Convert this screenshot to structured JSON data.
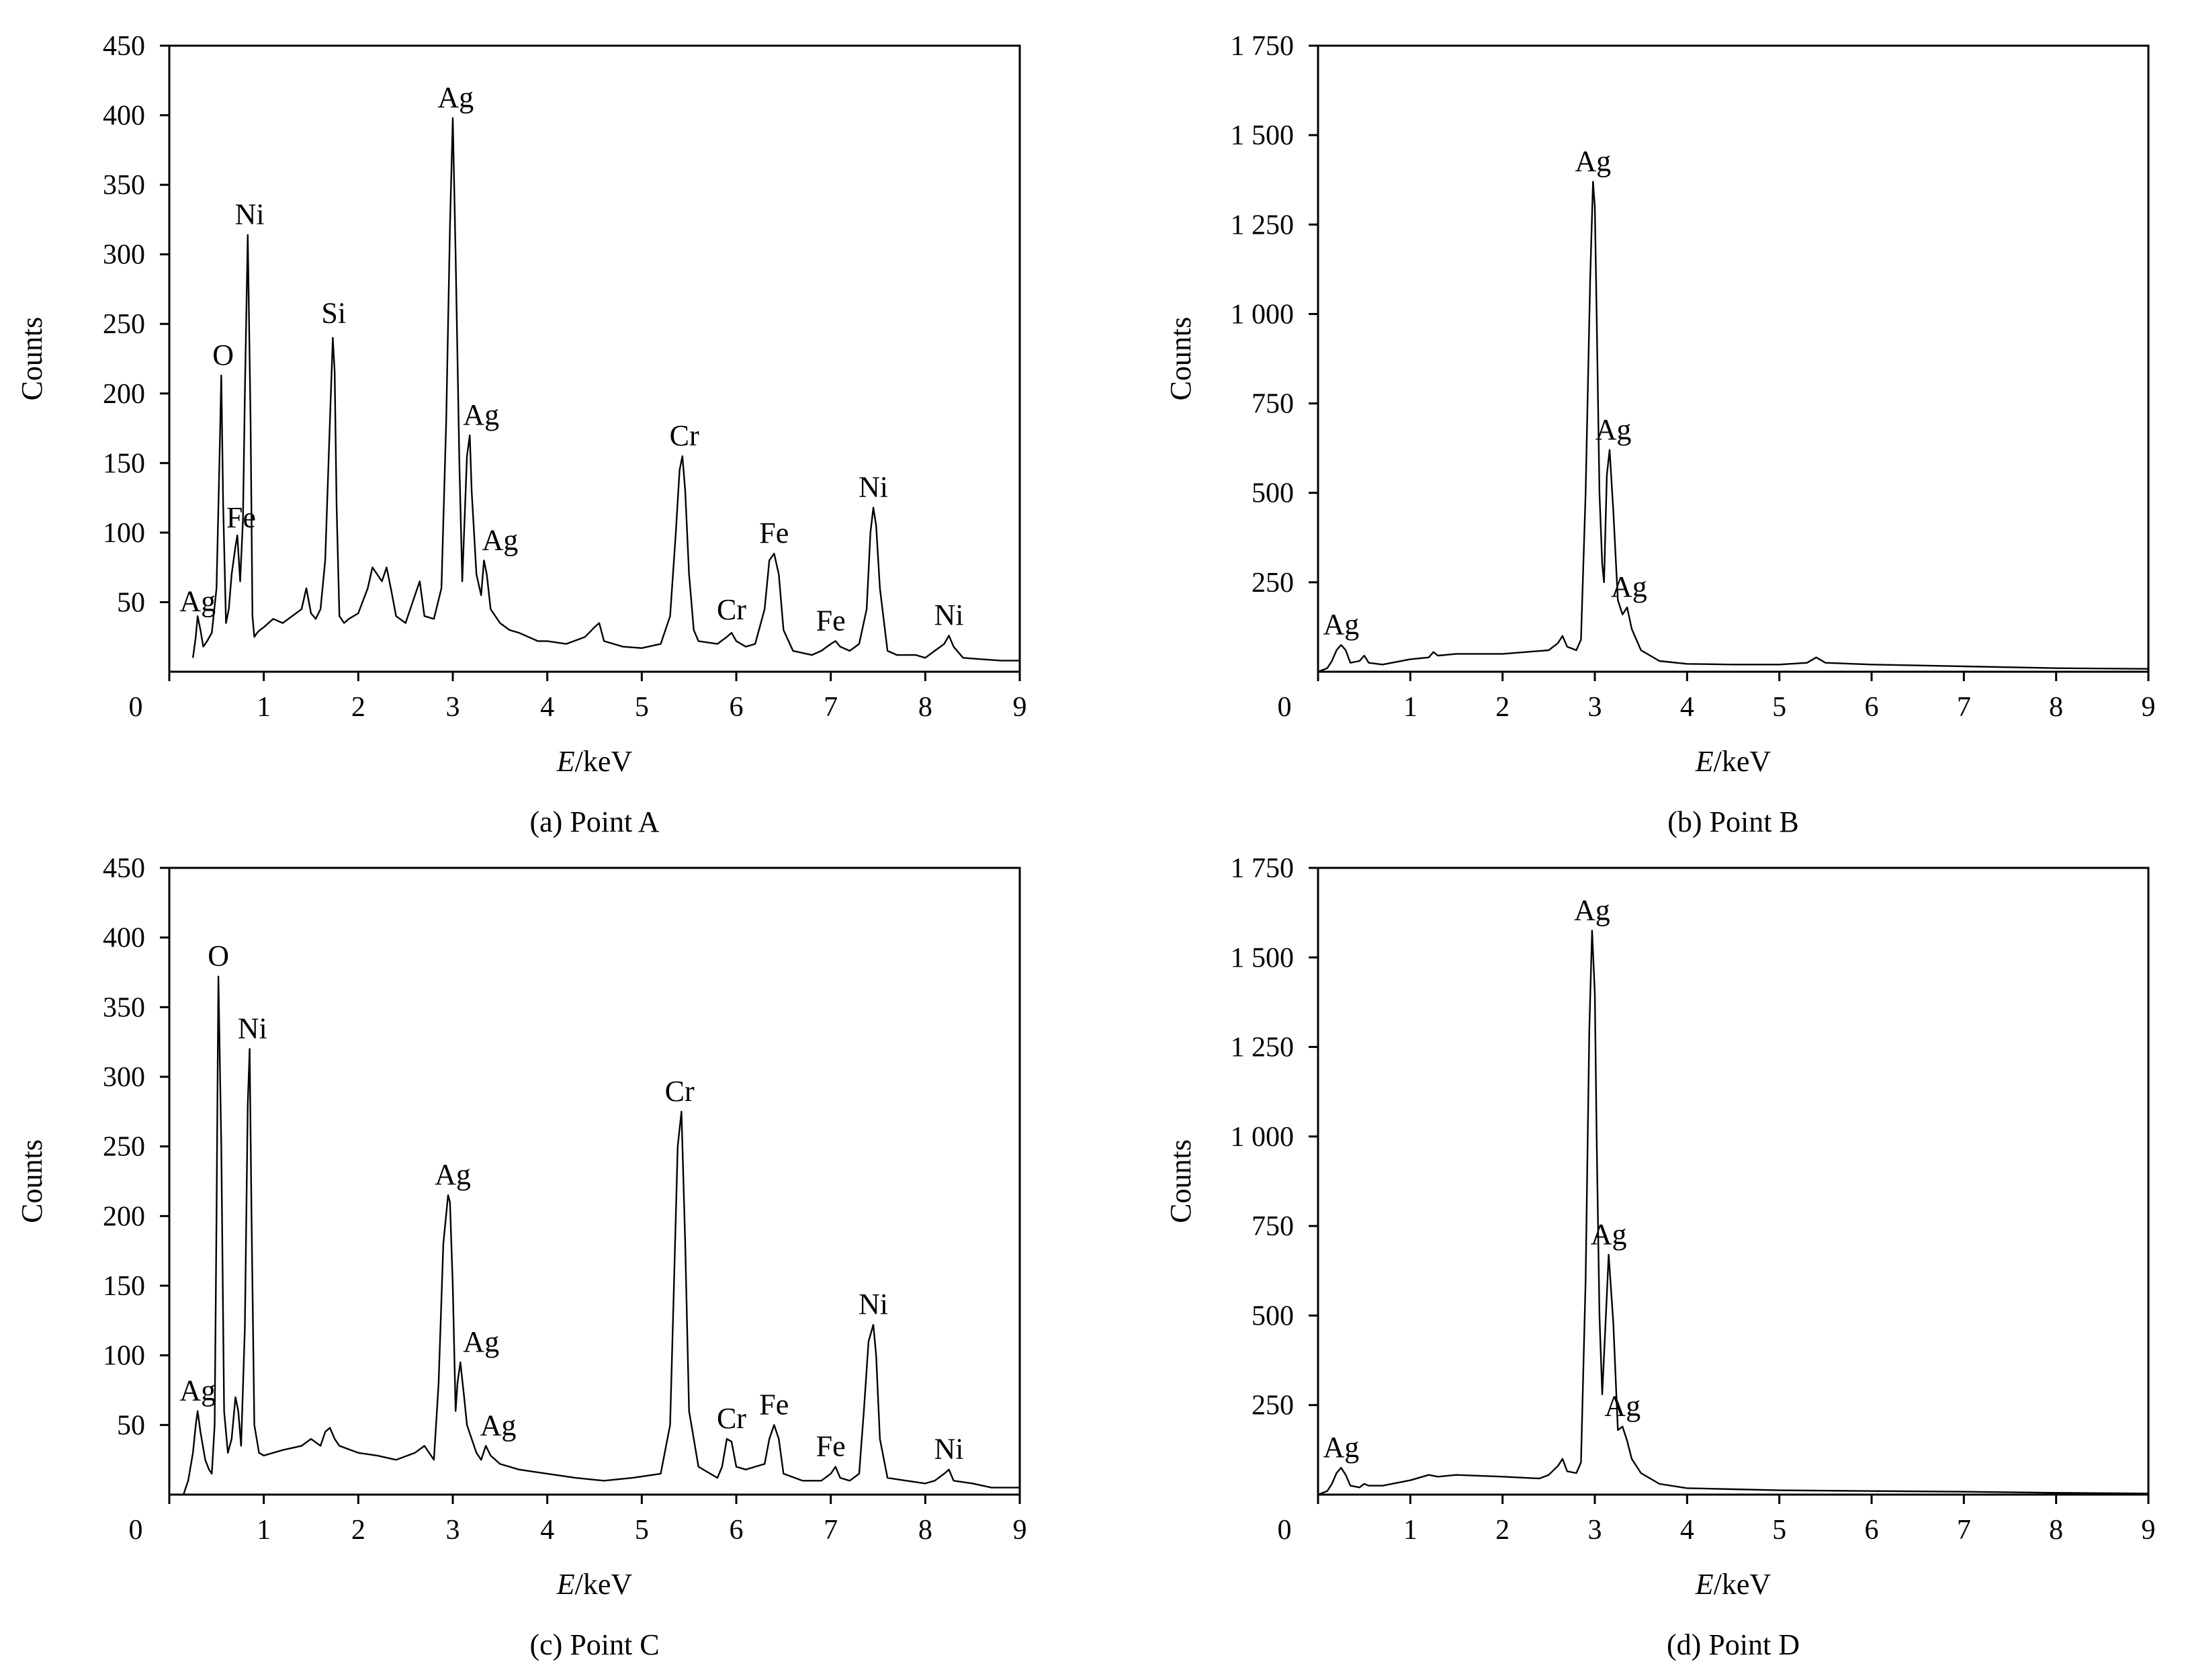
{
  "chart_data": [
    {
      "panel": "a",
      "type": "line",
      "caption": "(a) Point A",
      "xlabel_italic": "E",
      "xlabel_rest": "/keV",
      "ylabel": "Counts",
      "xlim": [
        0,
        9
      ],
      "ylim": [
        0,
        450
      ],
      "x_ticks": [
        0,
        1,
        2,
        3,
        4,
        5,
        6,
        7,
        8,
        9
      ],
      "x_tick_labels": [
        "0",
        "1",
        "2",
        "3",
        "4",
        "5",
        "6",
        "7",
        "8",
        "9"
      ],
      "y_ticks": [
        50,
        100,
        150,
        200,
        250,
        300,
        350,
        400,
        450
      ],
      "y_tick_labels": [
        "50",
        "100",
        "150",
        "200",
        "250",
        "300",
        "350",
        "400",
        "450"
      ],
      "origin_label": "0",
      "series": [
        {
          "x": [
            0.25,
            0.28,
            0.3,
            0.33,
            0.36,
            0.4,
            0.45,
            0.5,
            0.53,
            0.55,
            0.57,
            0.6,
            0.63,
            0.66,
            0.7,
            0.72,
            0.75,
            0.78,
            0.8,
            0.83,
            0.86,
            0.88,
            0.9,
            0.93,
            0.96,
            1.0,
            1.1,
            1.2,
            1.3,
            1.4,
            1.45,
            1.5,
            1.55,
            1.6,
            1.65,
            1.7,
            1.73,
            1.75,
            1.77,
            1.8,
            1.85,
            1.9,
            2.0,
            2.1,
            2.15,
            2.2,
            2.25,
            2.3,
            2.35,
            2.4,
            2.5,
            2.6,
            2.65,
            2.7,
            2.8,
            2.88,
            2.93,
            2.97,
            3.0,
            3.03,
            3.07,
            3.1,
            3.15,
            3.18,
            3.2,
            3.25,
            3.3,
            3.33,
            3.36,
            3.4,
            3.5,
            3.6,
            3.7,
            3.8,
            3.9,
            4.0,
            4.2,
            4.4,
            4.5,
            4.55,
            4.6,
            4.8,
            5.0,
            5.2,
            5.3,
            5.36,
            5.4,
            5.43,
            5.46,
            5.5,
            5.55,
            5.6,
            5.8,
            5.9,
            5.95,
            6.0,
            6.1,
            6.2,
            6.3,
            6.35,
            6.4,
            6.45,
            6.5,
            6.6,
            6.8,
            6.9,
            7.0,
            7.05,
            7.1,
            7.2,
            7.3,
            7.38,
            7.42,
            7.45,
            7.48,
            7.52,
            7.6,
            7.7,
            7.8,
            7.9,
            8.0,
            8.1,
            8.2,
            8.25,
            8.3,
            8.4,
            8.6,
            8.8,
            9.0
          ],
          "y": [
            10,
            25,
            40,
            30,
            18,
            22,
            28,
            60,
            150,
            213,
            120,
            35,
            45,
            70,
            90,
            98,
            65,
            110,
            200,
            314,
            180,
            40,
            25,
            28,
            30,
            32,
            38,
            35,
            40,
            45,
            60,
            42,
            38,
            45,
            80,
            180,
            240,
            215,
            120,
            40,
            35,
            38,
            42,
            60,
            75,
            70,
            65,
            75,
            58,
            40,
            35,
            55,
            65,
            40,
            38,
            60,
            180,
            320,
            398,
            300,
            150,
            65,
            155,
            170,
            130,
            70,
            55,
            80,
            70,
            45,
            35,
            30,
            28,
            25,
            22,
            22,
            20,
            25,
            32,
            35,
            22,
            18,
            17,
            20,
            40,
            100,
            145,
            155,
            130,
            70,
            30,
            22,
            20,
            25,
            28,
            22,
            18,
            20,
            45,
            80,
            85,
            70,
            30,
            15,
            12,
            15,
            20,
            22,
            18,
            15,
            20,
            45,
            100,
            118,
            105,
            60,
            15,
            12,
            12,
            12,
            10,
            15,
            20,
            26,
            18,
            10,
            9,
            8,
            8
          ]
        }
      ],
      "peak_labels": [
        {
          "text": "Ag",
          "x": 0.3,
          "y": 36
        },
        {
          "text": "O",
          "x": 0.57,
          "y": 213
        },
        {
          "text": "Fe",
          "x": 0.76,
          "y": 96
        },
        {
          "text": "Ni",
          "x": 0.85,
          "y": 314
        },
        {
          "text": "Si",
          "x": 1.74,
          "y": 243
        },
        {
          "text": "Ag",
          "x": 3.03,
          "y": 398
        },
        {
          "text": "Ag",
          "x": 3.3,
          "y": 170
        },
        {
          "text": "Ag",
          "x": 3.5,
          "y": 80
        },
        {
          "text": "Cr",
          "x": 5.45,
          "y": 155
        },
        {
          "text": "Cr",
          "x": 5.95,
          "y": 30
        },
        {
          "text": "Fe",
          "x": 6.4,
          "y": 85
        },
        {
          "text": "Fe",
          "x": 7.0,
          "y": 22
        },
        {
          "text": "Ni",
          "x": 7.45,
          "y": 118
        },
        {
          "text": "Ni",
          "x": 8.25,
          "y": 26
        }
      ]
    },
    {
      "panel": "b",
      "type": "line",
      "caption": "(b) Point B",
      "xlabel_italic": "E",
      "xlabel_rest": "/keV",
      "ylabel": "Counts",
      "xlim": [
        0,
        9
      ],
      "ylim": [
        0,
        1750
      ],
      "x_ticks": [
        0,
        1,
        2,
        3,
        4,
        5,
        6,
        7,
        8,
        9
      ],
      "x_tick_labels": [
        "0",
        "1",
        "2",
        "3",
        "4",
        "5",
        "6",
        "7",
        "8",
        "9"
      ],
      "y_ticks": [
        250,
        500,
        750,
        1000,
        1250,
        1500,
        1750
      ],
      "y_tick_labels": [
        "250",
        "500",
        "750",
        "1 000",
        "1 250",
        "1 500",
        "1 750"
      ],
      "origin_label": "0",
      "series": [
        {
          "x": [
            0.0,
            0.1,
            0.15,
            0.2,
            0.25,
            0.3,
            0.35,
            0.45,
            0.5,
            0.55,
            0.7,
            1.0,
            1.2,
            1.25,
            1.3,
            1.5,
            2.0,
            2.5,
            2.6,
            2.65,
            2.7,
            2.8,
            2.85,
            2.9,
            2.95,
            2.98,
            3.0,
            3.02,
            3.05,
            3.08,
            3.1,
            3.13,
            3.16,
            3.2,
            3.25,
            3.3,
            3.35,
            3.4,
            3.5,
            3.7,
            4.0,
            4.5,
            5.0,
            5.3,
            5.4,
            5.5,
            6.0,
            7.0,
            8.0,
            9.0
          ],
          "y": [
            0,
            10,
            30,
            60,
            75,
            60,
            25,
            30,
            45,
            25,
            20,
            35,
            40,
            55,
            45,
            50,
            50,
            60,
            80,
            100,
            70,
            60,
            90,
            500,
            1100,
            1370,
            1300,
            1000,
            500,
            300,
            250,
            550,
            620,
            450,
            200,
            160,
            180,
            120,
            60,
            30,
            22,
            20,
            20,
            25,
            40,
            25,
            20,
            15,
            10,
            8
          ]
        }
      ],
      "peak_labels": [
        {
          "text": "Ag",
          "x": 0.25,
          "y": 75
        },
        {
          "text": "Ag",
          "x": 2.98,
          "y": 1370
        },
        {
          "text": "Ag",
          "x": 3.2,
          "y": 620
        },
        {
          "text": "Ag",
          "x": 3.37,
          "y": 180
        }
      ]
    },
    {
      "panel": "c",
      "type": "line",
      "caption": "(c) Point C",
      "xlabel_italic": "E",
      "xlabel_rest": "/keV",
      "ylabel": "Counts",
      "xlim": [
        0,
        9
      ],
      "ylim": [
        0,
        450
      ],
      "x_ticks": [
        0,
        1,
        2,
        3,
        4,
        5,
        6,
        7,
        8,
        9
      ],
      "x_tick_labels": [
        "0",
        "1",
        "2",
        "3",
        "4",
        "5",
        "6",
        "7",
        "8",
        "9"
      ],
      "y_ticks": [
        50,
        100,
        150,
        200,
        250,
        300,
        350,
        400,
        450
      ],
      "y_tick_labels": [
        "50",
        "100",
        "150",
        "200",
        "250",
        "300",
        "350",
        "400",
        "450"
      ],
      "origin_label": "0",
      "series": [
        {
          "x": [
            0.15,
            0.2,
            0.25,
            0.28,
            0.3,
            0.33,
            0.38,
            0.42,
            0.45,
            0.48,
            0.5,
            0.52,
            0.55,
            0.58,
            0.62,
            0.66,
            0.7,
            0.73,
            0.76,
            0.8,
            0.83,
            0.85,
            0.87,
            0.9,
            0.95,
            1.0,
            1.2,
            1.4,
            1.5,
            1.6,
            1.65,
            1.7,
            1.75,
            1.8,
            2.0,
            2.2,
            2.4,
            2.6,
            2.7,
            2.8,
            2.85,
            2.9,
            2.95,
            2.97,
            3.0,
            3.03,
            3.05,
            3.08,
            3.12,
            3.15,
            3.2,
            3.25,
            3.3,
            3.35,
            3.4,
            3.5,
            3.7,
            4.0,
            4.3,
            4.6,
            4.9,
            5.2,
            5.3,
            5.34,
            5.38,
            5.42,
            5.46,
            5.5,
            5.6,
            5.8,
            5.85,
            5.9,
            5.95,
            6.0,
            6.1,
            6.2,
            6.3,
            6.35,
            6.4,
            6.45,
            6.5,
            6.7,
            6.9,
            7.0,
            7.05,
            7.1,
            7.2,
            7.3,
            7.35,
            7.4,
            7.45,
            7.48,
            7.52,
            7.6,
            7.8,
            8.0,
            8.1,
            8.2,
            8.25,
            8.3,
            8.5,
            8.7,
            9.0
          ],
          "y": [
            0,
            10,
            30,
            50,
            60,
            45,
            25,
            18,
            15,
            50,
            200,
            372,
            250,
            60,
            30,
            40,
            70,
            60,
            35,
            120,
            280,
            320,
            200,
            50,
            30,
            28,
            32,
            35,
            40,
            35,
            45,
            48,
            40,
            35,
            30,
            28,
            25,
            30,
            35,
            25,
            80,
            180,
            215,
            210,
            150,
            60,
            80,
            95,
            70,
            50,
            40,
            30,
            25,
            35,
            28,
            22,
            18,
            15,
            12,
            10,
            12,
            15,
            50,
            150,
            250,
            275,
            180,
            60,
            20,
            12,
            20,
            40,
            38,
            20,
            18,
            20,
            22,
            40,
            50,
            40,
            15,
            10,
            10,
            15,
            20,
            12,
            10,
            15,
            60,
            110,
            122,
            100,
            40,
            12,
            10,
            8,
            10,
            15,
            18,
            10,
            8,
            5,
            5
          ]
        }
      ],
      "peak_labels": [
        {
          "text": "Ag",
          "x": 0.3,
          "y": 60
        },
        {
          "text": "O",
          "x": 0.52,
          "y": 372
        },
        {
          "text": "Ni",
          "x": 0.88,
          "y": 320
        },
        {
          "text": "Ag",
          "x": 3.0,
          "y": 215
        },
        {
          "text": "Ag",
          "x": 3.3,
          "y": 95
        },
        {
          "text": "Ag",
          "x": 3.48,
          "y": 35
        },
        {
          "text": "Cr",
          "x": 5.4,
          "y": 275
        },
        {
          "text": "Cr",
          "x": 5.95,
          "y": 40
        },
        {
          "text": "Fe",
          "x": 6.4,
          "y": 50
        },
        {
          "text": "Fe",
          "x": 7.0,
          "y": 20
        },
        {
          "text": "Ni",
          "x": 7.45,
          "y": 122
        },
        {
          "text": "Ni",
          "x": 8.25,
          "y": 18
        }
      ]
    },
    {
      "panel": "d",
      "type": "line",
      "caption": "(d) Point D",
      "xlabel_italic": "E",
      "xlabel_rest": "/keV",
      "ylabel": "Counts",
      "xlim": [
        0,
        9
      ],
      "ylim": [
        0,
        1750
      ],
      "x_ticks": [
        0,
        1,
        2,
        3,
        4,
        5,
        6,
        7,
        8,
        9
      ],
      "x_tick_labels": [
        "0",
        "1",
        "2",
        "3",
        "4",
        "5",
        "6",
        "7",
        "8",
        "9"
      ],
      "y_ticks": [
        250,
        500,
        750,
        1000,
        1250,
        1500,
        1750
      ],
      "y_tick_labels": [
        "250",
        "500",
        "750",
        "1 000",
        "1 250",
        "1 500",
        "1 750"
      ],
      "origin_label": "0",
      "series": [
        {
          "x": [
            0.0,
            0.1,
            0.15,
            0.2,
            0.25,
            0.3,
            0.35,
            0.45,
            0.5,
            0.55,
            0.7,
            1.0,
            1.2,
            1.3,
            1.5,
            2.0,
            2.4,
            2.5,
            2.6,
            2.65,
            2.7,
            2.8,
            2.85,
            2.9,
            2.94,
            2.97,
            3.0,
            3.02,
            3.05,
            3.08,
            3.12,
            3.15,
            3.2,
            3.25,
            3.3,
            3.35,
            3.4,
            3.5,
            3.7,
            4.0,
            4.5,
            5.0,
            6.0,
            7.0,
            8.0,
            9.0
          ],
          "y": [
            0,
            10,
            30,
            60,
            75,
            55,
            25,
            20,
            30,
            25,
            25,
            40,
            55,
            50,
            55,
            50,
            45,
            55,
            80,
            100,
            65,
            60,
            90,
            600,
            1300,
            1575,
            1400,
            1000,
            500,
            280,
            500,
            670,
            480,
            180,
            190,
            150,
            100,
            60,
            30,
            18,
            15,
            12,
            10,
            8,
            5,
            3
          ]
        }
      ],
      "peak_labels": [
        {
          "text": "Ag",
          "x": 0.25,
          "y": 75
        },
        {
          "text": "Ag",
          "x": 2.97,
          "y": 1575
        },
        {
          "text": "Ag",
          "x": 3.15,
          "y": 670
        },
        {
          "text": "Ag",
          "x": 3.3,
          "y": 190
        }
      ]
    }
  ]
}
